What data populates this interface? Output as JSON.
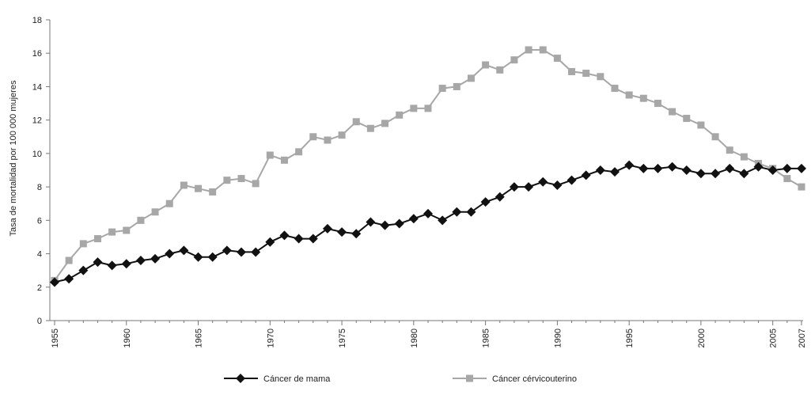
{
  "chart_data": {
    "type": "line",
    "title": "",
    "xlabel": "",
    "ylabel": "Tasa de mortalidad por 100 000 mujeres",
    "xlim": [
      1955,
      2007
    ],
    "ylim": [
      0,
      18
    ],
    "yticks": [
      0,
      2,
      4,
      6,
      8,
      10,
      12,
      14,
      16,
      18
    ],
    "xtick_labels": [
      "1955",
      "1960",
      "1965",
      "1970",
      "1975",
      "1980",
      "1985",
      "1990",
      "1995",
      "2000",
      "2005",
      "2007"
    ],
    "legend_position": "bottom",
    "grid": false,
    "x": [
      1955,
      1956,
      1957,
      1958,
      1959,
      1960,
      1961,
      1962,
      1963,
      1964,
      1965,
      1966,
      1967,
      1968,
      1969,
      1970,
      1971,
      1972,
      1973,
      1974,
      1975,
      1976,
      1977,
      1978,
      1979,
      1980,
      1981,
      1982,
      1983,
      1984,
      1985,
      1986,
      1987,
      1988,
      1989,
      1990,
      1991,
      1992,
      1993,
      1994,
      1995,
      1996,
      1997,
      1998,
      1999,
      2000,
      2001,
      2002,
      2003,
      2004,
      2005,
      2006,
      2007
    ],
    "series": [
      {
        "name": "Cáncer de mama",
        "color": "#111111",
        "marker": "diamond",
        "values": [
          2.3,
          2.5,
          3.0,
          3.5,
          3.3,
          3.4,
          3.6,
          3.7,
          4.0,
          4.2,
          3.8,
          3.8,
          4.2,
          4.1,
          4.1,
          4.7,
          5.1,
          4.9,
          4.9,
          5.5,
          5.3,
          5.2,
          5.9,
          5.7,
          5.8,
          6.1,
          6.4,
          6.0,
          6.5,
          6.5,
          7.1,
          7.4,
          8.0,
          8.0,
          8.3,
          8.1,
          8.4,
          8.7,
          9.0,
          8.9,
          9.3,
          9.1,
          9.1,
          9.2,
          9.0,
          8.8,
          8.8,
          9.1,
          8.8,
          9.2,
          9.0,
          9.1,
          9.1
        ]
      },
      {
        "name": "Cáncer cérvicouterino",
        "color": "#a7a7a7",
        "marker": "square",
        "values": [
          2.4,
          3.6,
          4.6,
          4.9,
          5.3,
          5.4,
          6.0,
          6.5,
          7.0,
          8.1,
          7.9,
          7.7,
          8.4,
          8.5,
          8.2,
          9.9,
          9.6,
          10.1,
          11.0,
          10.8,
          11.1,
          11.9,
          11.5,
          11.8,
          12.3,
          12.7,
          12.7,
          13.9,
          14.0,
          14.5,
          15.3,
          15.0,
          15.6,
          16.2,
          16.2,
          15.7,
          14.9,
          14.8,
          14.6,
          13.9,
          13.5,
          13.3,
          13.0,
          12.5,
          12.1,
          11.7,
          11.0,
          10.2,
          9.8,
          9.4,
          9.1,
          8.5,
          8.0
        ]
      }
    ]
  }
}
